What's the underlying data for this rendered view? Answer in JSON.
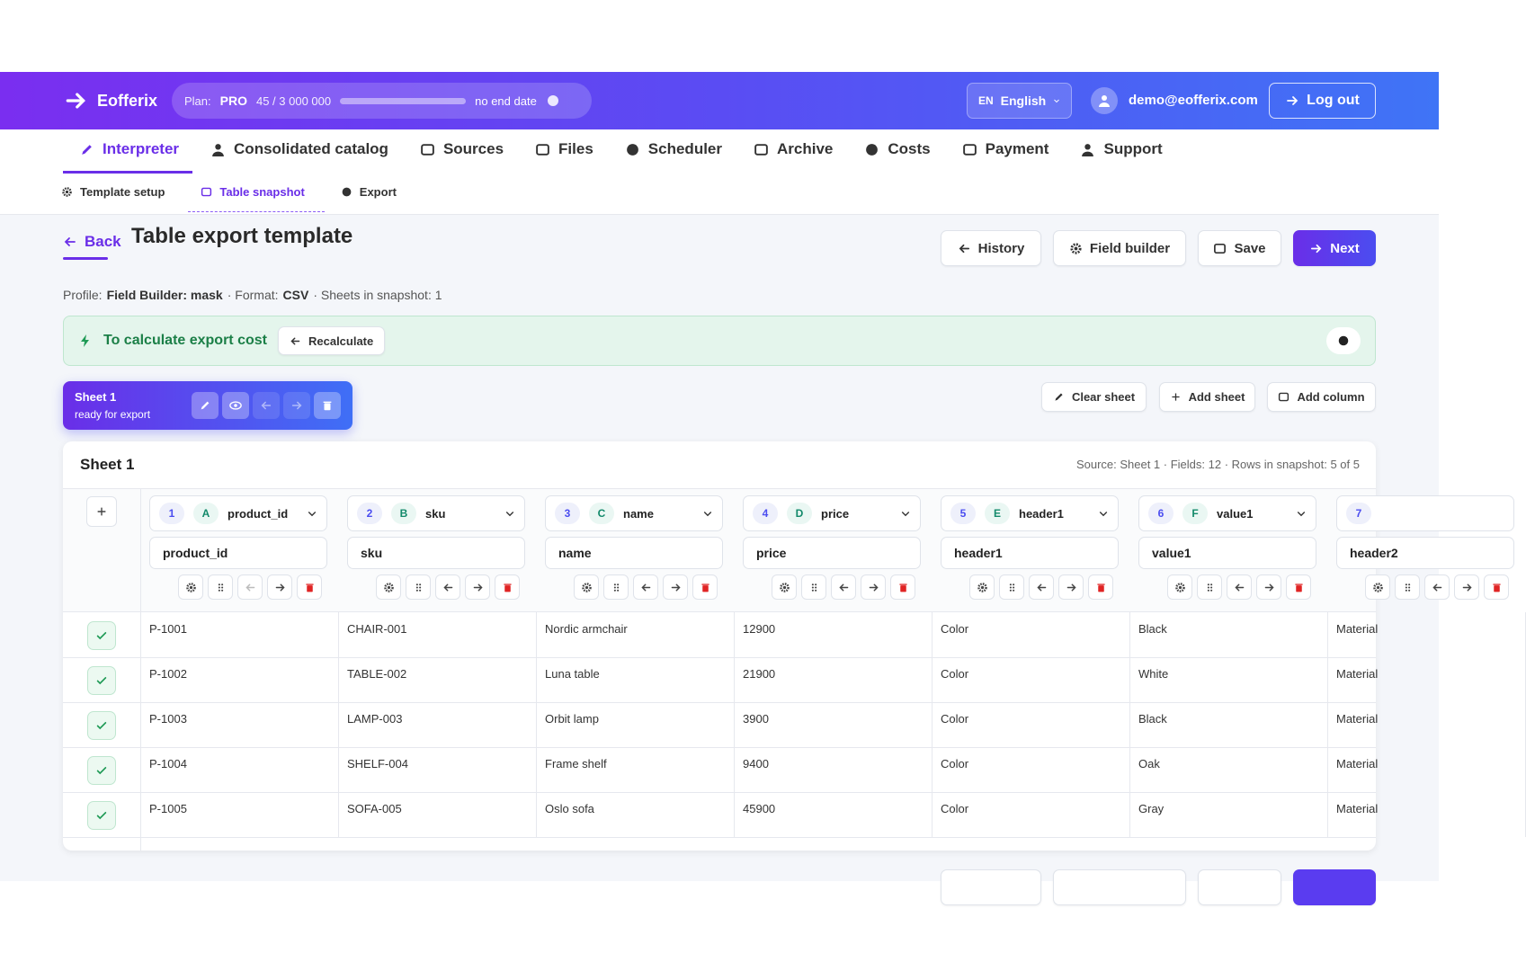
{
  "header": {
    "brand": "Eofferix",
    "plan_label": "Plan:",
    "plan": "PRO",
    "usage": "45 / 3 000 000",
    "term": "no end date",
    "lang_code": "EN",
    "lang": "English",
    "email": "demo@eofferix.com",
    "logout": "Log out"
  },
  "nav": {
    "tabs": [
      "Interpreter",
      "Consolidated catalog",
      "Sources",
      "Files",
      "Scheduler",
      "Archive",
      "Costs",
      "Payment",
      "Support"
    ],
    "subtabs": [
      "Template setup",
      "Table snapshot",
      "Export"
    ]
  },
  "page": {
    "back": "Back",
    "title": "Table export template",
    "buttons": [
      "History",
      "Field builder",
      "Save",
      "Next"
    ],
    "profile": {
      "label": "Profile:",
      "profile": "Field Builder: mask",
      "format_label": "· Format:",
      "format": "CSV",
      "sheets": "· Sheets in snapshot: 1"
    }
  },
  "banner": {
    "text": "To calculate export cost",
    "button": "Recalculate"
  },
  "sheet": {
    "name": "Sheet 1",
    "status": "ready for export",
    "actions": [
      "Clear sheet",
      "Add sheet",
      "Add column"
    ]
  },
  "table": {
    "title": "Sheet 1",
    "meta": "Source: Sheet 1 · Fields: 12 · Rows in snapshot: 5 of 5",
    "columns": [
      {
        "number": "1",
        "letter": "A",
        "name": "product_id",
        "field": "product_id"
      },
      {
        "number": "2",
        "letter": "B",
        "name": "sku",
        "field": "sku"
      },
      {
        "number": "3",
        "letter": "C",
        "name": "name",
        "field": "name"
      },
      {
        "number": "4",
        "letter": "D",
        "name": "price",
        "field": "price"
      },
      {
        "number": "5",
        "letter": "E",
        "name": "header1",
        "field": "header1"
      },
      {
        "number": "6",
        "letter": "F",
        "name": "value1",
        "field": "value1"
      },
      {
        "number": "7",
        "field": "header2"
      }
    ],
    "rows": [
      [
        "P-1001",
        "CHAIR-001",
        "Nordic armchair",
        "12900",
        "Color",
        "Black",
        "Material"
      ],
      [
        "P-1002",
        "TABLE-002",
        "Luna table",
        "21900",
        "Color",
        "White",
        "Material"
      ],
      [
        "P-1003",
        "LAMP-003",
        "Orbit lamp",
        "3900",
        "Color",
        "Black",
        "Material"
      ],
      [
        "P-1004",
        "SHELF-004",
        "Frame shelf",
        "9400",
        "Color",
        "Oak",
        "Material"
      ],
      [
        "P-1005",
        "SOFA-005",
        "Oslo sofa",
        "45900",
        "Color",
        "Gray",
        "Material"
      ]
    ]
  }
}
